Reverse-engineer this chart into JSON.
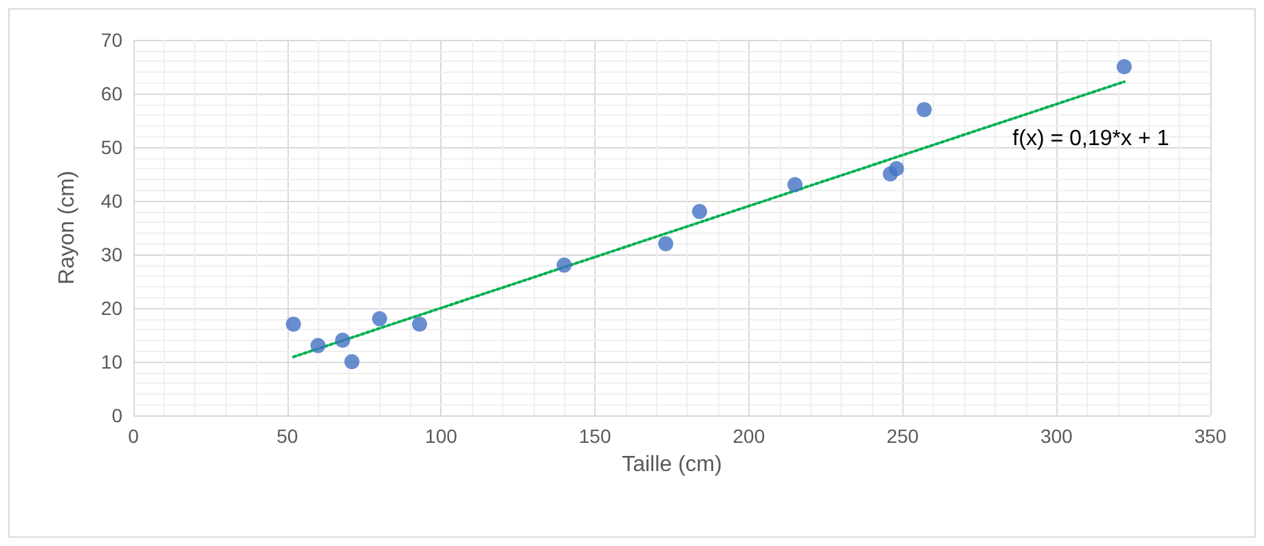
{
  "chart_data": {
    "type": "scatter",
    "xlabel": "Taille (cm)",
    "ylabel": "Rayon (cm)",
    "xlim": [
      0,
      350
    ],
    "xticks": [
      0,
      50,
      100,
      150,
      200,
      250,
      300,
      350
    ],
    "ylim": [
      0,
      70
    ],
    "yticks": [
      0,
      10,
      20,
      30,
      40,
      50,
      60,
      70
    ],
    "grid": true,
    "marker": "circle",
    "series": [
      {
        "color": "#4472c4",
        "x": [
          52,
          60,
          68,
          71,
          80,
          93,
          140,
          173,
          184,
          215,
          246,
          248,
          257,
          322
        ],
        "values": [
          17,
          13,
          14,
          10,
          18,
          17,
          28,
          32,
          38,
          43,
          45,
          46,
          57,
          65
        ]
      },
      {
        "type": "line",
        "color": "#00b050",
        "line_style": "dotted",
        "marker": "none",
        "x": [
          52,
          322
        ],
        "values": [
          10.9,
          62.2
        ]
      }
    ],
    "annotations": [
      "f(x) = 0,19*x + 1"
    ]
  }
}
